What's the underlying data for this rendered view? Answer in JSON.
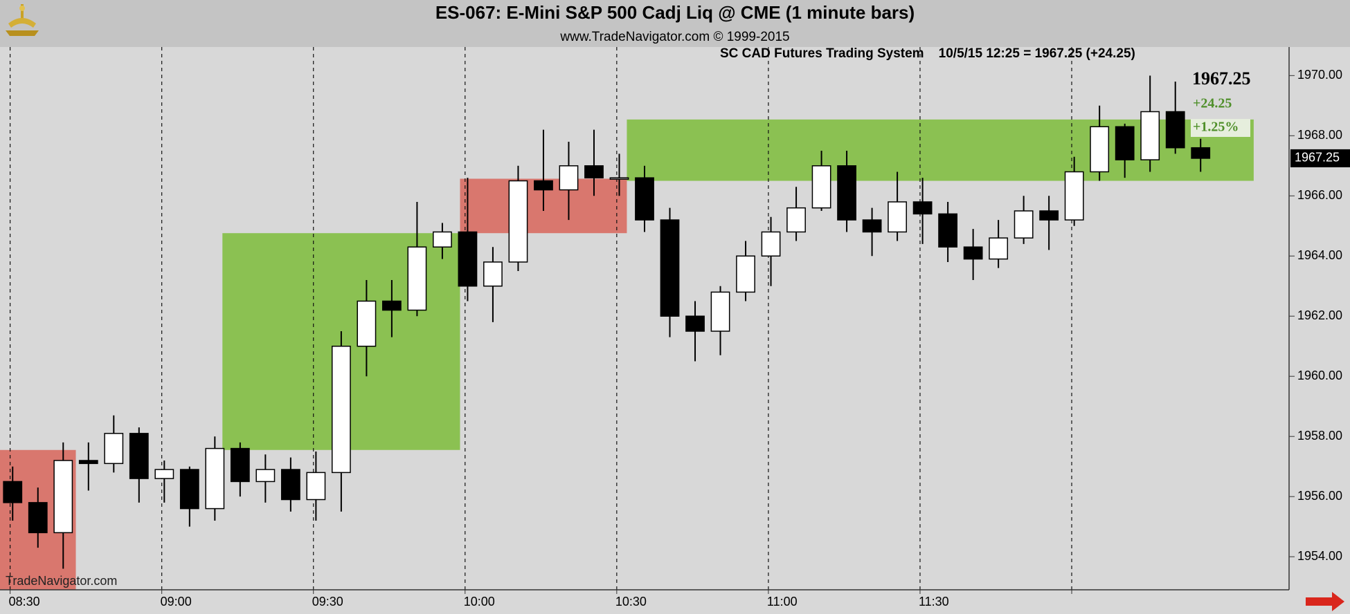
{
  "chart_data": {
    "type": "candlestick",
    "title": "ES-067:  E-Mini S&P 500 Cadj Liq @ CME  (1 minute bars)",
    "subtitle": "www.TradeNavigator.com © 1999-2015",
    "info": "SC CAD Futures Trading System    10/5/15 12:25 = 1967.25 (+24.25)",
    "watermark": "TradeNavigator.com",
    "last_price": 1967.25,
    "change": "+24.25",
    "percent_change": "+1.25%",
    "grid": true,
    "xlim": [
      "08:28",
      "12:43"
    ],
    "xticks": [
      "08:30",
      "09:00",
      "09:30",
      "10:00",
      "10:30",
      "11:00",
      "11:30",
      {
        "value": "12:00",
        "label": null
      }
    ],
    "ylim": [
      1952.9,
      1970.95
    ],
    "yticks": [
      {
        "value": 1954,
        "label": "1954.00"
      },
      {
        "value": 1956,
        "label": "1956.00"
      },
      {
        "value": 1958,
        "label": "1958.00"
      },
      {
        "value": 1960,
        "label": "1960.00"
      },
      {
        "value": 1962,
        "label": "1962.00"
      },
      {
        "value": 1964,
        "label": "1964.00"
      },
      {
        "value": 1966,
        "label": "1966.00"
      },
      {
        "value": 1968,
        "label": "1968.00"
      },
      {
        "value": 1970,
        "label": "1970.00"
      }
    ],
    "zones": [
      {
        "start": "08:28",
        "end": "08:43",
        "low": 1952.9,
        "high": 1957.55,
        "color": "#d9776e"
      },
      {
        "start": "09:12",
        "end": "09:59",
        "low": 1957.55,
        "high": 1964.76,
        "color": "#8bc152"
      },
      {
        "start": "09:59",
        "end": "10:32",
        "low": 1964.76,
        "high": 1966.57,
        "color": "#d9776e"
      },
      {
        "start": "10:32",
        "end": "12:36",
        "low": 1966.5,
        "high": 1968.54,
        "color": "#8bc152"
      }
    ],
    "x": [
      "08:28",
      "08:33",
      "08:38",
      "08:43",
      "08:48",
      "08:53",
      "08:58",
      "09:03",
      "09:08",
      "09:13",
      "09:18",
      "09:23",
      "09:28",
      "09:33",
      "09:38",
      "09:43",
      "09:48",
      "09:53",
      "09:58",
      "10:03",
      "10:08",
      "10:13",
      "10:18",
      "10:23",
      "10:28",
      "10:33",
      "10:38",
      "10:43",
      "10:48",
      "10:53",
      "10:58",
      "11:03",
      "11:08",
      "11:13",
      "11:18",
      "11:23",
      "11:28",
      "11:33",
      "11:38",
      "11:43",
      "11:48",
      "11:53",
      "11:58",
      "12:03",
      "12:08",
      "12:13",
      "12:18",
      "12:23"
    ],
    "open": [
      1956.5,
      1955.8,
      1954.8,
      1957.2,
      1957.1,
      1958.1,
      1956.6,
      1956.9,
      1955.6,
      1957.6,
      1956.5,
      1956.9,
      1955.9,
      1956.8,
      1961,
      1962.5,
      1962.2,
      1964.3,
      1964.8,
      1963,
      1963.8,
      1966.5,
      1966.2,
      1967,
      1966.6,
      1966.6,
      1965.2,
      1962,
      1961.5,
      1962.8,
      1964,
      1964.8,
      1965.6,
      1967,
      1965.2,
      1964.8,
      1965.8,
      1965.4,
      1964.3,
      1963.9,
      1964.6,
      1965.5,
      1965.2,
      1966.8,
      1968.3,
      1967.2,
      1968.8,
      1967.6
    ],
    "high": [
      1957,
      1956.3,
      1957.8,
      1957.8,
      1958.7,
      1958.3,
      1957.2,
      1957,
      1958,
      1957.8,
      1957.4,
      1957.3,
      1957.5,
      1961.5,
      1963.2,
      1963.2,
      1965.8,
      1965.1,
      1966.6,
      1964.3,
      1967,
      1968.2,
      1967.8,
      1968.2,
      1967.4,
      1967,
      1965.6,
      1962.5,
      1963,
      1964.5,
      1965.3,
      1966.3,
      1967.5,
      1967.5,
      1965.6,
      1966.8,
      1966.6,
      1965.8,
      1964.9,
      1965.2,
      1966,
      1966,
      1967.3,
      1969,
      1968.4,
      1970,
      1969.8,
      1967.9
    ],
    "low": [
      1955.2,
      1954.3,
      1953.6,
      1956.2,
      1956.8,
      1955.8,
      1955.8,
      1955,
      1955.2,
      1956,
      1955.8,
      1955.5,
      1955.2,
      1955.5,
      1960,
      1961.3,
      1962,
      1963.9,
      1962.5,
      1961.8,
      1963.5,
      1965.5,
      1965.2,
      1966,
      1966,
      1964.8,
      1961.3,
      1960.5,
      1960.7,
      1962.5,
      1963,
      1964.5,
      1965.5,
      1964.8,
      1964,
      1964.5,
      1964.4,
      1963.8,
      1963.2,
      1963.6,
      1964.4,
      1964.2,
      1965,
      1966.5,
      1966.6,
      1966.8,
      1967.4,
      1966.8
    ],
    "close": [
      1955.8,
      1954.8,
      1957.2,
      1957.1,
      1958.1,
      1956.6,
      1956.9,
      1955.6,
      1957.6,
      1956.5,
      1956.9,
      1955.9,
      1956.8,
      1961,
      1962.5,
      1962.2,
      1964.3,
      1964.8,
      1963,
      1963.8,
      1966.5,
      1966.2,
      1967,
      1966.6,
      1966.6,
      1965.2,
      1962,
      1961.5,
      1962.8,
      1964,
      1964.8,
      1965.6,
      1967,
      1965.2,
      1964.8,
      1965.8,
      1965.4,
      1964.3,
      1963.9,
      1964.6,
      1965.5,
      1965.2,
      1966.8,
      1968.3,
      1967.2,
      1968.8,
      1967.6,
      1967.25
    ]
  }
}
